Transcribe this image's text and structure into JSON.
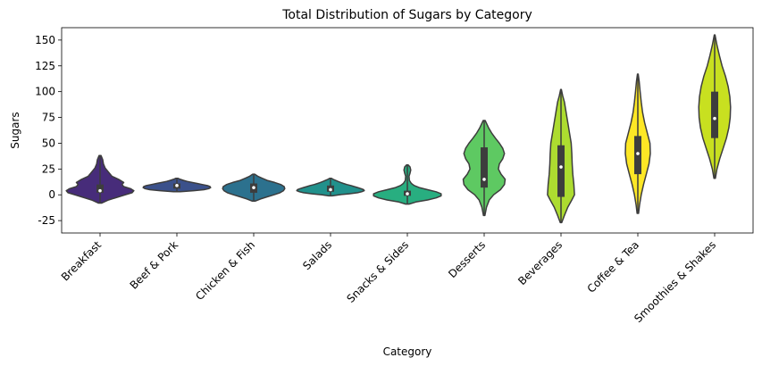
{
  "chart_data": {
    "type": "violin",
    "title": "Total Distribution of Sugars by Category",
    "xlabel": "Category",
    "ylabel": "Sugars",
    "ylim": [
      -37,
      162
    ],
    "yticks": [
      -25,
      0,
      25,
      50,
      75,
      100,
      125,
      150
    ],
    "grid": false,
    "categories": [
      "Breakfast",
      "Beef & Pork",
      "Chicken & Fish",
      "Salads",
      "Snacks & Sides",
      "Desserts",
      "Beverages",
      "Coffee & Tea",
      "Smoothies & Shakes"
    ],
    "colors": [
      "#472c7a",
      "#3b518b",
      "#2c718e",
      "#21918c",
      "#28ae80",
      "#5ec962",
      "#addc30",
      "#fde725",
      "#c8e020"
    ],
    "violins": [
      {
        "category": "Breakfast",
        "min": -8,
        "max": 38,
        "q1": 2,
        "median": 4,
        "q3": 10,
        "profile": [
          [
            -8,
            0.05
          ],
          [
            -5,
            0.25
          ],
          [
            -2,
            0.55
          ],
          [
            0,
            0.75
          ],
          [
            2,
            0.95
          ],
          [
            4,
            1.0
          ],
          [
            6,
            0.9
          ],
          [
            8,
            0.7
          ],
          [
            10,
            0.65
          ],
          [
            12,
            0.7
          ],
          [
            15,
            0.55
          ],
          [
            18,
            0.35
          ],
          [
            22,
            0.25
          ],
          [
            26,
            0.15
          ],
          [
            30,
            0.1
          ],
          [
            34,
            0.08
          ],
          [
            38,
            0.03
          ]
        ]
      },
      {
        "category": "Beef & Pork",
        "min": 3,
        "max": 16,
        "q1": 6,
        "median": 9,
        "q3": 11,
        "profile": [
          [
            3,
            0.1
          ],
          [
            4,
            0.5
          ],
          [
            5,
            0.8
          ],
          [
            6,
            0.95
          ],
          [
            7,
            1.0
          ],
          [
            8,
            0.98
          ],
          [
            9,
            0.9
          ],
          [
            10,
            0.75
          ],
          [
            11,
            0.6
          ],
          [
            12,
            0.45
          ],
          [
            13,
            0.3
          ],
          [
            14,
            0.2
          ],
          [
            15,
            0.1
          ],
          [
            16,
            0.03
          ]
        ]
      },
      {
        "category": "Chicken & Fish",
        "min": -6,
        "max": 20,
        "q1": 2,
        "median": 7,
        "q3": 11,
        "profile": [
          [
            -6,
            0.05
          ],
          [
            -4,
            0.2
          ],
          [
            -2,
            0.4
          ],
          [
            0,
            0.6
          ],
          [
            2,
            0.78
          ],
          [
            4,
            0.88
          ],
          [
            6,
            0.92
          ],
          [
            8,
            0.9
          ],
          [
            10,
            0.8
          ],
          [
            12,
            0.62
          ],
          [
            14,
            0.4
          ],
          [
            16,
            0.25
          ],
          [
            18,
            0.12
          ],
          [
            20,
            0.03
          ]
        ]
      },
      {
        "category": "Salads",
        "min": -1,
        "max": 16,
        "q1": 3,
        "median": 5,
        "q3": 9,
        "profile": [
          [
            -1,
            0.05
          ],
          [
            0,
            0.25
          ],
          [
            1,
            0.55
          ],
          [
            2,
            0.8
          ],
          [
            3,
            0.92
          ],
          [
            4,
            1.0
          ],
          [
            5,
            0.98
          ],
          [
            6,
            0.9
          ],
          [
            7,
            0.8
          ],
          [
            8,
            0.7
          ],
          [
            9,
            0.6
          ],
          [
            10,
            0.48
          ],
          [
            11,
            0.38
          ],
          [
            12,
            0.3
          ],
          [
            13,
            0.22
          ],
          [
            14,
            0.15
          ],
          [
            15,
            0.08
          ],
          [
            16,
            0.02
          ]
        ]
      },
      {
        "category": "Snacks & Sides",
        "min": -9,
        "max": 29,
        "q1": -1,
        "median": 1,
        "q3": 4,
        "profile": [
          [
            -9,
            0.05
          ],
          [
            -7,
            0.25
          ],
          [
            -5,
            0.6
          ],
          [
            -3,
            0.85
          ],
          [
            -1,
            1.0
          ],
          [
            1,
            1.0
          ],
          [
            3,
            0.85
          ],
          [
            5,
            0.6
          ],
          [
            7,
            0.35
          ],
          [
            9,
            0.2
          ],
          [
            11,
            0.12
          ],
          [
            14,
            0.06
          ],
          [
            18,
            0.05
          ],
          [
            21,
            0.08
          ],
          [
            24,
            0.1
          ],
          [
            27,
            0.08
          ],
          [
            29,
            0.02
          ]
        ]
      },
      {
        "category": "Desserts",
        "min": -20,
        "max": 72,
        "q1": 7,
        "median": 15,
        "q3": 46,
        "profile": [
          [
            -20,
            0.02
          ],
          [
            -12,
            0.07
          ],
          [
            -5,
            0.15
          ],
          [
            0,
            0.28
          ],
          [
            5,
            0.48
          ],
          [
            10,
            0.6
          ],
          [
            15,
            0.62
          ],
          [
            20,
            0.5
          ],
          [
            25,
            0.42
          ],
          [
            30,
            0.45
          ],
          [
            35,
            0.55
          ],
          [
            40,
            0.6
          ],
          [
            45,
            0.55
          ],
          [
            50,
            0.45
          ],
          [
            55,
            0.33
          ],
          [
            60,
            0.22
          ],
          [
            65,
            0.13
          ],
          [
            72,
            0.03
          ]
        ]
      },
      {
        "category": "Beverages",
        "min": -27,
        "max": 102,
        "q1": -2,
        "median": 27,
        "q3": 48,
        "profile": [
          [
            -27,
            0.02
          ],
          [
            -20,
            0.1
          ],
          [
            -12,
            0.2
          ],
          [
            -5,
            0.32
          ],
          [
            0,
            0.4
          ],
          [
            10,
            0.38
          ],
          [
            20,
            0.35
          ],
          [
            30,
            0.33
          ],
          [
            40,
            0.32
          ],
          [
            50,
            0.3
          ],
          [
            60,
            0.25
          ],
          [
            70,
            0.2
          ],
          [
            80,
            0.15
          ],
          [
            90,
            0.1
          ],
          [
            96,
            0.05
          ],
          [
            102,
            0.01
          ]
        ]
      },
      {
        "category": "Coffee & Tea",
        "min": -18,
        "max": 117,
        "q1": 20,
        "median": 40,
        "q3": 57,
        "profile": [
          [
            -18,
            0.02
          ],
          [
            -10,
            0.05
          ],
          [
            0,
            0.1
          ],
          [
            10,
            0.17
          ],
          [
            20,
            0.25
          ],
          [
            30,
            0.33
          ],
          [
            40,
            0.37
          ],
          [
            50,
            0.36
          ],
          [
            60,
            0.28
          ],
          [
            70,
            0.2
          ],
          [
            80,
            0.14
          ],
          [
            90,
            0.1
          ],
          [
            100,
            0.07
          ],
          [
            110,
            0.04
          ],
          [
            117,
            0.01
          ]
        ]
      },
      {
        "category": "Smoothies & Shakes",
        "min": 16,
        "max": 155,
        "q1": 55,
        "median": 74,
        "q3": 100,
        "profile": [
          [
            16,
            0.02
          ],
          [
            25,
            0.07
          ],
          [
            35,
            0.15
          ],
          [
            45,
            0.25
          ],
          [
            55,
            0.35
          ],
          [
            65,
            0.42
          ],
          [
            75,
            0.46
          ],
          [
            85,
            0.47
          ],
          [
            95,
            0.45
          ],
          [
            105,
            0.4
          ],
          [
            115,
            0.32
          ],
          [
            125,
            0.22
          ],
          [
            135,
            0.14
          ],
          [
            145,
            0.07
          ],
          [
            155,
            0.01
          ]
        ]
      }
    ]
  }
}
